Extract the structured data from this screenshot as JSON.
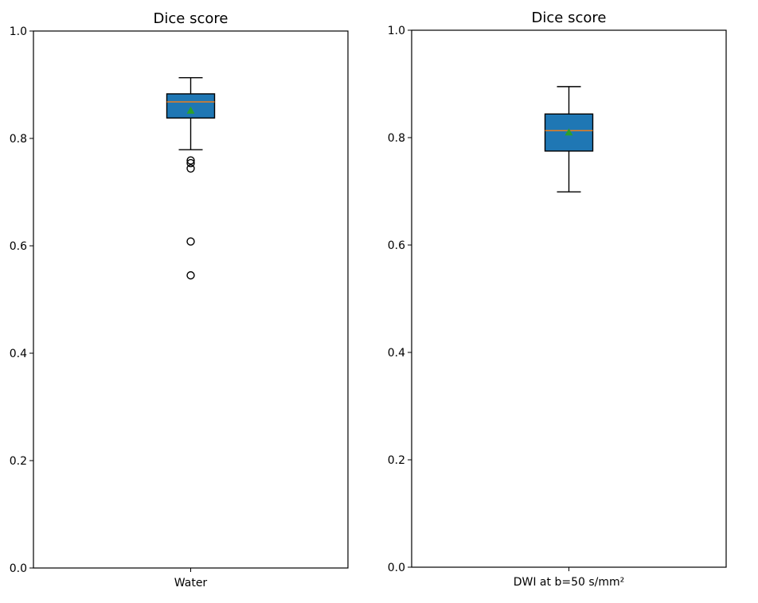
{
  "chart_data": [
    {
      "type": "box",
      "title": "Dice score",
      "xlabel": "",
      "ylabel": "",
      "ylim": [
        0.0,
        1.0
      ],
      "yticks": [
        "0.0",
        "0.2",
        "0.4",
        "0.6",
        "0.8",
        "1.0"
      ],
      "categories": [
        "Water"
      ],
      "boxes": [
        {
          "category": "Water",
          "whisker_high": 0.913,
          "q3": 0.883,
          "median": 0.868,
          "mean": 0.852,
          "q1": 0.838,
          "whisker_low": 0.779,
          "outliers": [
            0.759,
            0.754,
            0.744,
            0.608,
            0.545
          ]
        }
      ],
      "colors": {
        "box": "#1f77b4",
        "median": "#ff7f0e",
        "mean": "#2ca02c"
      }
    },
    {
      "type": "box",
      "title": "Dice score",
      "xlabel": "",
      "ylabel": "",
      "ylim": [
        0.0,
        1.0
      ],
      "yticks": [
        "0.0",
        "0.2",
        "0.4",
        "0.6",
        "0.8",
        "1.0"
      ],
      "categories": [
        "DWI at b=50 s/mm²"
      ],
      "boxes": [
        {
          "category": "DWI at b=50 s/mm²",
          "whisker_high": 0.895,
          "q3": 0.844,
          "median": 0.813,
          "mean": 0.81,
          "q1": 0.775,
          "whisker_low": 0.699,
          "outliers": []
        }
      ],
      "colors": {
        "box": "#1f77b4",
        "median": "#ff7f0e",
        "mean": "#2ca02c"
      }
    }
  ]
}
